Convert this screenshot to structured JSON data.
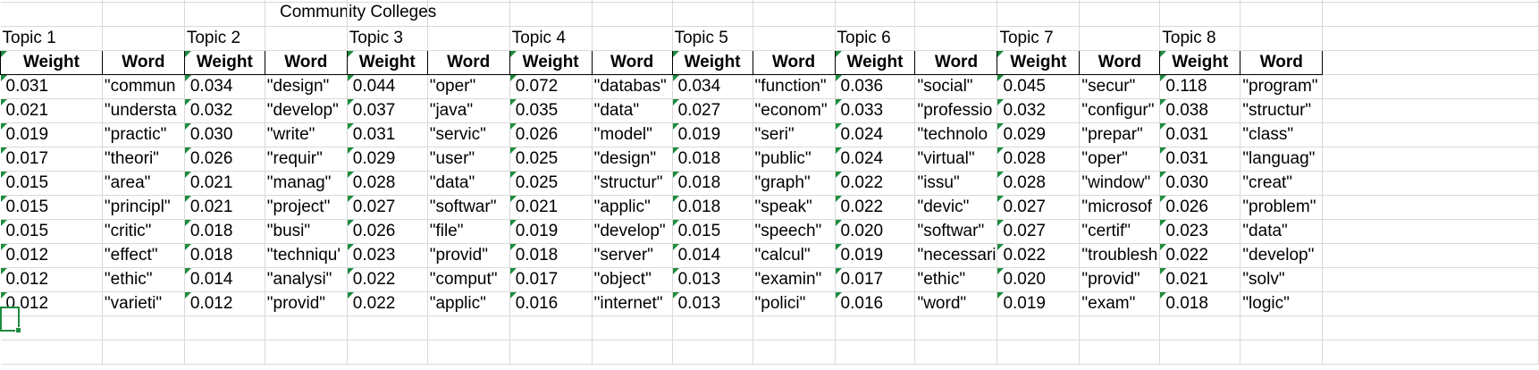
{
  "sheet": {
    "title": "Community Colleges",
    "weight_header": "Weight",
    "word_header": "Word",
    "topics": [
      {
        "label": "Topic 1",
        "weights": [
          "0.031",
          "0.021",
          "0.019",
          "0.017",
          "0.015",
          "0.015",
          "0.015",
          "0.012",
          "0.012",
          "0.012"
        ],
        "words": [
          "\"commun",
          "\"understa",
          "\"practic\"",
          "\"theori\"",
          "\"area\"",
          "\"principl\"",
          "\"critic\"",
          "\"effect\"",
          "\"ethic\"",
          "\"varieti\""
        ]
      },
      {
        "label": "Topic 2",
        "weights": [
          "0.034",
          "0.032",
          "0.030",
          "0.026",
          "0.021",
          "0.021",
          "0.018",
          "0.018",
          "0.014",
          "0.012"
        ],
        "words": [
          "\"design\"",
          "\"develop\"",
          "\"write\"",
          "\"requir\"",
          "\"manag\"",
          "\"project\"",
          "\"busi\"",
          "\"techniqu'",
          "\"analysi\"",
          "\"provid\""
        ]
      },
      {
        "label": "Topic 3",
        "weights": [
          "0.044",
          "0.037",
          "0.031",
          "0.029",
          "0.028",
          "0.027",
          "0.026",
          "0.023",
          "0.022",
          "0.022"
        ],
        "words": [
          "\"oper\"",
          "\"java\"",
          "\"servic\"",
          "\"user\"",
          "\"data\"",
          "\"softwar\"",
          "\"file\"",
          "\"provid\"",
          "\"comput\"",
          "\"applic\""
        ]
      },
      {
        "label": "Topic 4",
        "weights": [
          "0.072",
          "0.035",
          "0.026",
          "0.025",
          "0.025",
          "0.021",
          "0.019",
          "0.018",
          "0.017",
          "0.016"
        ],
        "words": [
          "\"databas\"",
          "\"data\"",
          "\"model\"",
          "\"design\"",
          "\"structur\"",
          "\"applic\"",
          "\"develop\"",
          "\"server\"",
          "\"object\"",
          "\"internet\""
        ]
      },
      {
        "label": "Topic 5",
        "weights": [
          "0.034",
          "0.027",
          "0.019",
          "0.018",
          "0.018",
          "0.018",
          "0.015",
          "0.014",
          "0.013",
          "0.013"
        ],
        "words": [
          "\"function\"",
          "\"econom\"",
          "\"seri\"",
          "\"public\"",
          "\"graph\"",
          "\"speak\"",
          "\"speech\"",
          "\"calcul\"",
          "\"examin\"",
          "\"polici\""
        ]
      },
      {
        "label": "Topic 6",
        "weights": [
          "0.036",
          "0.033",
          "0.024",
          "0.024",
          "0.022",
          "0.022",
          "0.020",
          "0.019",
          "0.017",
          "0.016"
        ],
        "words": [
          "\"social\"",
          "\"professio",
          "\"technolo",
          "\"virtual\"",
          "\"issu\"",
          "\"devic\"",
          "\"softwar\"",
          "\"necessari",
          "\"ethic\"",
          "\"word\""
        ]
      },
      {
        "label": "Topic 7",
        "weights": [
          "0.045",
          "0.032",
          "0.029",
          "0.028",
          "0.028",
          "0.027",
          "0.027",
          "0.022",
          "0.020",
          "0.019"
        ],
        "words": [
          "\"secur\"",
          "\"configur\"",
          "\"prepar\"",
          "\"oper\"",
          "\"window\"",
          "\"microsof",
          "\"certif\"",
          "\"troublesh",
          "\"provid\"",
          "\"exam\""
        ]
      },
      {
        "label": "Topic 8",
        "weights": [
          "0.118",
          "0.038",
          "0.031",
          "0.031",
          "0.030",
          "0.026",
          "0.023",
          "0.022",
          "0.021",
          "0.018"
        ],
        "words": [
          "\"program\"",
          "\"structur\"",
          "\"class\"",
          "\"languag\"",
          "\"creat\"",
          "\"problem\"",
          "\"data\"",
          "\"develop\"",
          "\"solv\"",
          "\"logic\""
        ]
      }
    ]
  },
  "colors": {
    "gridline": "#d9d9d9",
    "accent": "#1e8c3e"
  }
}
